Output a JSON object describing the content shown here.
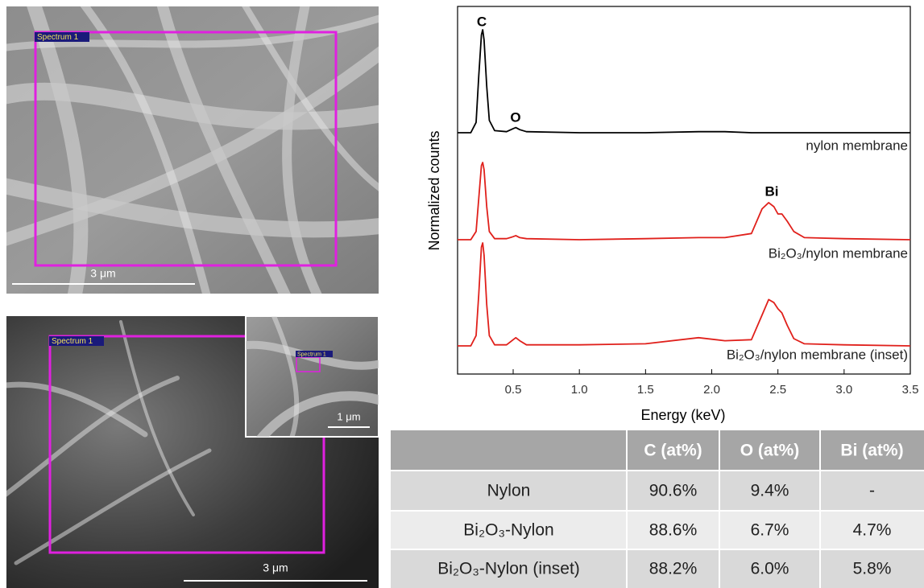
{
  "images": [
    {
      "label": "Spectrum 1",
      "scale_bar": "3 μm"
    },
    {
      "label": "Spectrum 1",
      "scale_bar": "3 μm",
      "inset": {
        "label": "Spectrum 1",
        "scale_bar": "1 μm"
      }
    }
  ],
  "chart_data": {
    "type": "line",
    "x_label": "Energy (keV)",
    "y_label": "Normalized counts",
    "annotations": [
      "C",
      "O",
      "Bi"
    ],
    "x": [
      0.08,
      0.18,
      0.22,
      0.24,
      0.26,
      0.27,
      0.28,
      0.3,
      0.32,
      0.36,
      0.45,
      0.5,
      0.52,
      0.55,
      0.6,
      1.0,
      1.5,
      1.9,
      2.1,
      2.3,
      2.38,
      2.43,
      2.47,
      2.5,
      2.53,
      2.57,
      2.62,
      2.7,
      3.0,
      3.5
    ],
    "series": [
      {
        "name": "nylon membrane",
        "color": "#000000",
        "values": [
          0,
          0,
          0.1,
          0.55,
          0.95,
          1.0,
          0.9,
          0.45,
          0.12,
          0.02,
          0.01,
          0.04,
          0.05,
          0.03,
          0.01,
          0,
          0,
          0.01,
          0.01,
          0,
          0,
          0,
          0,
          0,
          0,
          0,
          0,
          0,
          0,
          0
        ]
      },
      {
        "name": "Bi₂O₃/nylon membrane",
        "color": "#e0201b",
        "values": [
          0,
          0,
          0.08,
          0.4,
          0.72,
          0.75,
          0.68,
          0.32,
          0.08,
          0.01,
          0.01,
          0.03,
          0.04,
          0.02,
          0.01,
          0,
          0.01,
          0.02,
          0.02,
          0.06,
          0.3,
          0.36,
          0.32,
          0.25,
          0.25,
          0.18,
          0.08,
          0.02,
          0.01,
          0
        ]
      },
      {
        "name": "Bi₂O₃/nylon membrane (inset)",
        "color": "#e0201b",
        "values": [
          0,
          0,
          0.1,
          0.5,
          0.96,
          1.0,
          0.88,
          0.4,
          0.1,
          0.01,
          0.01,
          0.06,
          0.08,
          0.05,
          0.01,
          0.01,
          0.02,
          0.08,
          0.05,
          0.06,
          0.3,
          0.45,
          0.42,
          0.36,
          0.32,
          0.2,
          0.07,
          0.02,
          0.01,
          0
        ]
      }
    ],
    "xlim": [
      0.08,
      3.5
    ],
    "ylim": [
      0,
      1
    ],
    "xticks": [
      0.5,
      {
        "value": 1,
        "label": "1.0"
      },
      1.5,
      {
        "value": 2,
        "label": "2.0"
      },
      2.5,
      {
        "value": 3,
        "label": "3.0"
      },
      3.5
    ]
  },
  "table": {
    "header": [
      "C (at%)",
      "O (at%)",
      "Bi (at%)"
    ],
    "rows": [
      [
        "Nylon",
        "90.6%",
        "9.4%",
        "-"
      ],
      [
        "Bi₂O₃-Nylon",
        "88.6%",
        "6.7%",
        "4.7%"
      ],
      [
        "Bi₂O₃-Nylon (inset)",
        "88.2%",
        "6.0%",
        "5.8%"
      ]
    ]
  }
}
